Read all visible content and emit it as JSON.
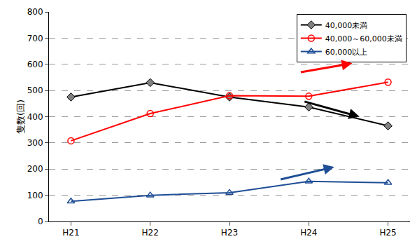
{
  "chart_data": {
    "type": "line",
    "y_label": "隻数(回)",
    "categories": [
      "H21",
      "H22",
      "H23",
      "H24",
      "H25"
    ],
    "series": [
      {
        "name": "40,000未満",
        "color": "#000000",
        "marker": "diamond",
        "values": [
          475,
          530,
          475,
          437,
          365
        ]
      },
      {
        "name": "40,000～60,000未満",
        "color": "#ff0000",
        "marker": "circle-open",
        "values": [
          308,
          412,
          480,
          478,
          532
        ]
      },
      {
        "name": "60,000以上",
        "color": "#1f4e96",
        "marker": "triangle-up-open",
        "values": [
          77,
          100,
          110,
          153,
          148
        ]
      }
    ],
    "ylim": [
      0,
      800
    ],
    "yticks": [
      0,
      100,
      200,
      300,
      400,
      500,
      600,
      700,
      800
    ],
    "grid": true,
    "legend": "top right"
  }
}
